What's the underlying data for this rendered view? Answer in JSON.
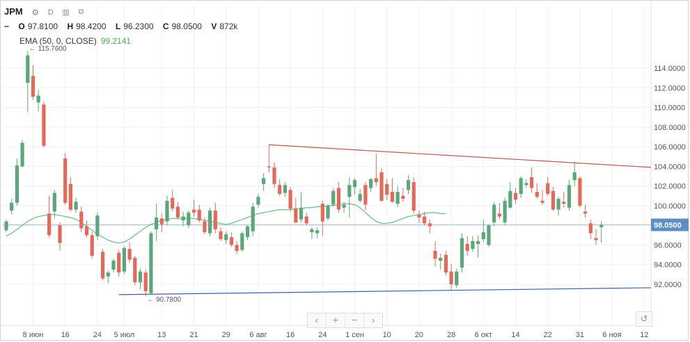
{
  "header": {
    "symbol": "JPM",
    "interval": "D",
    "gear_icon": "gear-icon",
    "bars_icon": "bars-icon",
    "compare_icon": "compare-icon",
    "collapse_icon": "minus-icon",
    "o_label": "O",
    "o_value": "97.8100",
    "h_label": "H",
    "h_value": "98.4200",
    "l_label": "L",
    "l_value": "96.2300",
    "c_label": "C",
    "c_value": "98.0500",
    "v_label": "V",
    "v_value": "872k",
    "ema_label": "EMA (50, 0, CLOSE)",
    "ema_value": "99.2141"
  },
  "nav": {
    "left": "‹",
    "zoom_in": "+",
    "zoom_out": "−",
    "right": "›",
    "reset": "↺"
  },
  "colors": {
    "up": "#5aa77c",
    "down": "#e36a5a",
    "ema": "#6fbf8e",
    "resistance": "#b45a4f",
    "support": "#3f5f9e",
    "price_line": "#a9bfd6",
    "price_label_bg": "#5b8fc5"
  },
  "chart_data": {
    "type": "candlestick",
    "symbol": "JPM",
    "ylim": [
      89.5,
      118.0
    ],
    "y_ticks": [
      "92.0000",
      "94.0000",
      "96.0000",
      "98.0000",
      "100.0000",
      "102.0000",
      "104.0000",
      "106.0000",
      "108.0000",
      "110.0000",
      "112.0000",
      "114.0000"
    ],
    "y_tick_values": [
      92,
      94,
      96,
      98,
      100,
      102,
      104,
      106,
      108,
      110,
      112,
      114
    ],
    "x_labels": [
      {
        "i": 5,
        "text": "8 июн"
      },
      {
        "i": 11,
        "text": "16"
      },
      {
        "i": 17,
        "text": "24"
      },
      {
        "i": 22,
        "text": "5 июл"
      },
      {
        "i": 29,
        "text": "13"
      },
      {
        "i": 35,
        "text": "21"
      },
      {
        "i": 41,
        "text": "29"
      },
      {
        "i": 47,
        "text": "6 авг"
      },
      {
        "i": 53,
        "text": "16"
      },
      {
        "i": 59,
        "text": "24"
      },
      {
        "i": 65,
        "text": "1 сен"
      },
      {
        "i": 71,
        "text": "10"
      },
      {
        "i": 77,
        "text": "20"
      },
      {
        "i": 83,
        "text": "28"
      },
      {
        "i": 89,
        "text": "6 окт"
      },
      {
        "i": 95,
        "text": "14"
      },
      {
        "i": 101,
        "text": "22"
      },
      {
        "i": 107,
        "text": "31"
      },
      {
        "i": 113,
        "text": "6 ноя"
      },
      {
        "i": 119,
        "text": "12"
      }
    ],
    "candles": [
      [
        97.5,
        98.6,
        97.3,
        98.4
      ],
      [
        99.5,
        100.7,
        99.1,
        100.3
      ],
      [
        100.3,
        104.8,
        100.0,
        104.1
      ],
      [
        104.0,
        106.7,
        103.9,
        106.4
      ],
      [
        112.5,
        115.76,
        109.5,
        115.3
      ],
      [
        113.2,
        114.3,
        110.8,
        111.1
      ],
      [
        110.5,
        111.8,
        109.6,
        111.2
      ],
      [
        110.3,
        110.6,
        105.9,
        106.1
      ],
      [
        99.2,
        101.0,
        96.8,
        97.0
      ],
      [
        99.4,
        101.6,
        98.7,
        101.3
      ],
      [
        98.0,
        98.3,
        95.4,
        96.2
      ],
      [
        104.8,
        105.4,
        100.1,
        100.3
      ],
      [
        102.2,
        102.9,
        99.4,
        99.6
      ],
      [
        99.6,
        100.8,
        99.3,
        100.4
      ],
      [
        99.4,
        99.9,
        97.3,
        97.7
      ],
      [
        97.9,
        98.5,
        96.8,
        97.0
      ],
      [
        97.0,
        97.3,
        94.6,
        94.9
      ],
      [
        96.9,
        99.3,
        96.5,
        99.0
      ],
      [
        95.3,
        95.6,
        92.4,
        92.6
      ],
      [
        92.8,
        93.4,
        92.1,
        93.2
      ],
      [
        93.5,
        94.6,
        93.2,
        94.4
      ],
      [
        95.2,
        95.5,
        92.8,
        93.2
      ],
      [
        93.3,
        95.9,
        93.0,
        95.7
      ],
      [
        95.6,
        96.3,
        94.2,
        94.5
      ],
      [
        94.7,
        94.9,
        91.9,
        92.2
      ],
      [
        92.2,
        93.6,
        91.5,
        93.3
      ],
      [
        93.2,
        93.5,
        90.78,
        91.3
      ],
      [
        91.1,
        97.4,
        90.9,
        97.2
      ],
      [
        97.6,
        100.2,
        96.4,
        98.8
      ],
      [
        98.7,
        99.2,
        97.3,
        98.1
      ],
      [
        98.4,
        101.0,
        98.0,
        100.5
      ],
      [
        100.8,
        101.6,
        99.4,
        99.7
      ],
      [
        99.9,
        100.4,
        98.6,
        98.8
      ],
      [
        98.5,
        99.4,
        97.9,
        98.9
      ],
      [
        98.0,
        99.5,
        97.7,
        99.3
      ],
      [
        99.6,
        100.6,
        98.9,
        99.3
      ],
      [
        99.6,
        100.1,
        98.3,
        98.5
      ],
      [
        98.4,
        98.8,
        97.1,
        97.3
      ],
      [
        97.2,
        99.8,
        96.9,
        99.5
      ],
      [
        99.5,
        100.3,
        97.2,
        97.6
      ],
      [
        97.4,
        97.8,
        96.4,
        96.6
      ],
      [
        96.5,
        97.4,
        96.1,
        97.1
      ],
      [
        96.8,
        97.3,
        95.8,
        96.0
      ],
      [
        96.0,
        96.4,
        95.1,
        95.4
      ],
      [
        95.5,
        97.4,
        95.3,
        97.2
      ],
      [
        96.8,
        98.0,
        96.5,
        97.9
      ],
      [
        97.4,
        100.3,
        96.9,
        99.9
      ],
      [
        100.1,
        101.2,
        99.8,
        100.9
      ],
      [
        102.2,
        103.3,
        101.5,
        102.8
      ],
      [
        104.0,
        106.2,
        103.4,
        103.9
      ],
      [
        103.9,
        104.4,
        101.8,
        102.2
      ],
      [
        102.1,
        102.7,
        101.0,
        101.2
      ],
      [
        101.3,
        102.4,
        100.9,
        102.1
      ],
      [
        101.6,
        101.9,
        99.4,
        99.7
      ],
      [
        99.7,
        100.8,
        98.2,
        98.3
      ],
      [
        98.6,
        101.4,
        98.3,
        99.8
      ],
      [
        98.9,
        99.3,
        98.0,
        98.2
      ],
      [
        97.3,
        97.8,
        96.6,
        97.6
      ],
      [
        97.2,
        97.8,
        96.7,
        97.5
      ],
      [
        100.2,
        100.5,
        96.9,
        98.4
      ],
      [
        98.7,
        100.2,
        98.5,
        100.0
      ],
      [
        100.1,
        101.8,
        99.9,
        101.5
      ],
      [
        101.8,
        102.4,
        99.3,
        99.6
      ],
      [
        99.8,
        100.4,
        99.3,
        100.1
      ],
      [
        100.9,
        102.9,
        98.8,
        102.1
      ],
      [
        101.9,
        102.8,
        101.1,
        102.6
      ],
      [
        100.5,
        101.7,
        100.3,
        101.2
      ],
      [
        102.1,
        102.4,
        99.5,
        100.1
      ],
      [
        101.8,
        102.8,
        101.4,
        102.7
      ],
      [
        102.8,
        105.3,
        102.0,
        102.4
      ],
      [
        103.4,
        103.8,
        100.4,
        100.5
      ],
      [
        102.2,
        102.7,
        100.6,
        101.1
      ],
      [
        101.4,
        102.8,
        100.3,
        100.4
      ],
      [
        100.2,
        102.0,
        99.9,
        101.4
      ],
      [
        101.0,
        101.8,
        100.4,
        100.7
      ],
      [
        101.6,
        103.1,
        101.2,
        102.6
      ],
      [
        102.4,
        102.9,
        99.2,
        99.5
      ],
      [
        99.1,
        99.5,
        98.2,
        98.8
      ],
      [
        98.9,
        99.4,
        98.0,
        98.2
      ],
      [
        98.2,
        98.6,
        97.2,
        97.9
      ],
      [
        95.4,
        96.4,
        93.8,
        94.6
      ],
      [
        94.4,
        95.1,
        93.5,
        94.7
      ],
      [
        95.0,
        95.4,
        92.9,
        93.2
      ],
      [
        93.3,
        94.1,
        91.4,
        92.0
      ],
      [
        91.9,
        93.6,
        91.6,
        93.3
      ],
      [
        93.7,
        97.2,
        93.2,
        96.7
      ],
      [
        96.1,
        96.9,
        94.9,
        95.4
      ],
      [
        95.6,
        96.9,
        95.3,
        96.4
      ],
      [
        96.1,
        97.0,
        94.7,
        96.4
      ],
      [
        96.6,
        98.6,
        96.3,
        97.3
      ],
      [
        96.0,
        98.1,
        95.8,
        98.0
      ],
      [
        98.3,
        100.4,
        97.9,
        100.1
      ],
      [
        99.2,
        100.3,
        98.6,
        98.9
      ],
      [
        98.3,
        100.8,
        98.0,
        100.5
      ],
      [
        99.8,
        102.4,
        99.7,
        101.5
      ],
      [
        101.3,
        101.8,
        100.2,
        100.6
      ],
      [
        101.2,
        103.0,
        100.8,
        102.8
      ],
      [
        102.1,
        102.7,
        101.8,
        102.3
      ],
      [
        102.9,
        103.9,
        101.3,
        101.8
      ],
      [
        101.4,
        102.3,
        100.7,
        100.9
      ],
      [
        100.5,
        101.6,
        100.1,
        100.3
      ],
      [
        102.3,
        102.9,
        101.0,
        101.2
      ],
      [
        101.5,
        101.9,
        99.5,
        99.6
      ],
      [
        99.6,
        100.9,
        99.0,
        100.7
      ],
      [
        100.4,
        101.4,
        99.8,
        100.2
      ],
      [
        99.8,
        102.6,
        99.5,
        102.1
      ],
      [
        102.6,
        104.5,
        102.0,
        103.4
      ],
      [
        102.8,
        103.0,
        99.8,
        100.0
      ],
      [
        99.4,
        100.1,
        98.8,
        99.2
      ],
      [
        98.2,
        98.6,
        96.6,
        97.2
      ],
      [
        96.7,
        97.6,
        96.0,
        96.5
      ],
      [
        97.81,
        98.42,
        96.23,
        98.05
      ]
    ],
    "candle_index_map_note": "",
    "ema": [
      96.9,
      97.2,
      97.6,
      98.0,
      98.4,
      98.7,
      98.9,
      99.0,
      99.1,
      99.1,
      99.0,
      98.9,
      98.8,
      98.6,
      98.3,
      97.9,
      97.5,
      97.1,
      96.8,
      96.5,
      96.3,
      96.2,
      96.3,
      96.6,
      97.0,
      97.4,
      97.8,
      98.1,
      98.3,
      98.5,
      98.6,
      98.7,
      98.7,
      98.7,
      98.7,
      98.7,
      98.6,
      98.5,
      98.4,
      98.3,
      98.2,
      98.1,
      98.2,
      98.4,
      98.6,
      98.8,
      99.0,
      99.2,
      99.3,
      99.4,
      99.5,
      99.6,
      99.6,
      99.6,
      99.7,
      99.7,
      99.8,
      99.8,
      99.9,
      99.9,
      100.0,
      100.0,
      100.1,
      100.2,
      100.2,
      100.1,
      99.8,
      99.3,
      98.8,
      98.4,
      98.2,
      98.2,
      98.3,
      98.5,
      98.7,
      98.9,
      99.0,
      99.1,
      99.2,
      99.3,
      99.3,
      99.2,
      99.2
    ],
    "ema_current": 99.2141,
    "current_price": 98.05,
    "current_price_label": "98.0500",
    "trendlines": [
      {
        "name": "resistance",
        "from": [
          49,
          106.2
        ],
        "to": [
          119,
          103.9
        ]
      },
      {
        "name": "support",
        "from": [
          21,
          90.95
        ],
        "to": [
          119,
          91.65
        ]
      }
    ],
    "annotations": [
      {
        "text": "115.7600",
        "x": 4,
        "value": 115.76,
        "kind": "high"
      },
      {
        "text": "90.7800",
        "x": 26,
        "value": 90.78,
        "kind": "low"
      }
    ]
  }
}
